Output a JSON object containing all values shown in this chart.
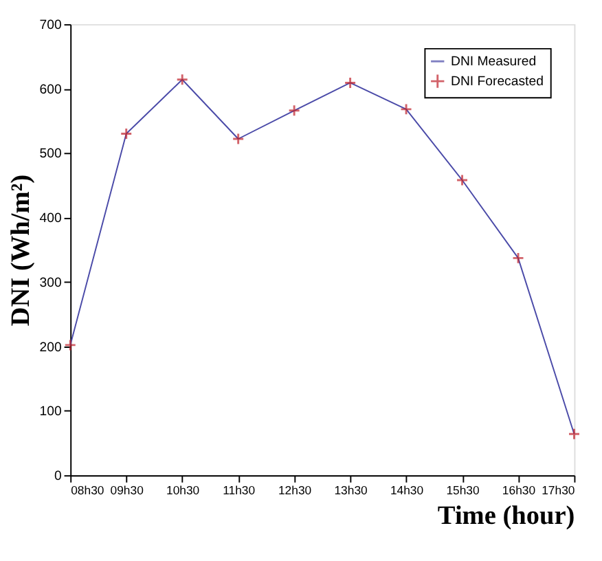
{
  "chart_data": {
    "type": "line",
    "xlabel": "Time (hour)",
    "ylabel": "DNI (Wh/m²)",
    "categories": [
      "08h30",
      "09h30",
      "10h30",
      "11h30",
      "12h30",
      "13h30",
      "14h30",
      "15h30",
      "16h30",
      "17h30"
    ],
    "series": [
      {
        "name": "DNI Measured",
        "color": "#4a4aa8",
        "marker": "none",
        "line_style": "solid",
        "values": [
          202,
          530,
          614,
          522,
          566,
          609,
          568,
          458,
          337,
          64
        ]
      },
      {
        "name": "DNI Forecasted",
        "type": "scatter",
        "color": "#c0202a",
        "marker": "cross",
        "values": [
          202,
          530,
          614,
          522,
          566,
          609,
          568,
          458,
          337,
          64
        ]
      }
    ],
    "ylim": [
      0,
      700
    ],
    "yticks": [
      0,
      100,
      200,
      300,
      400,
      500,
      600,
      700
    ],
    "grid": false,
    "legend": "top right"
  }
}
